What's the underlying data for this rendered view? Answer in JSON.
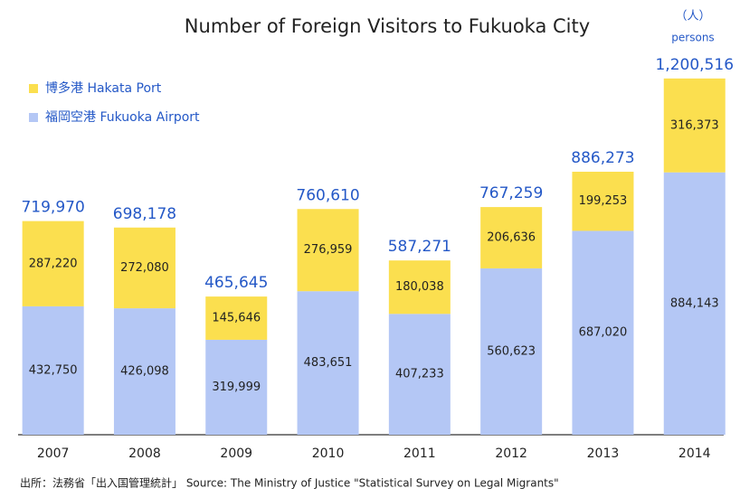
{
  "chart_data": {
    "type": "bar",
    "stacked": true,
    "title": "Number of Foreign Visitors to Fukuoka City",
    "unit_label": "（人）",
    "unit_sublabel": "persons",
    "source": "出所：法務省「出入国管理統計」 Source: The Ministry of Justice \"Statistical Survey on Legal Migrants\"",
    "categories": [
      "2007",
      "2008",
      "2009",
      "2010",
      "2011",
      "2012",
      "2013",
      "2014"
    ],
    "series": [
      {
        "name": "福岡空港 Fukuoka Airport",
        "color": "#b4c7f5",
        "values": [
          432750,
          426098,
          319999,
          483651,
          407233,
          560623,
          687020,
          884143
        ],
        "value_labels": [
          "432,750",
          "426,098",
          "319,999",
          "483,651",
          "407,233",
          "560,623",
          "687,020",
          "884,143"
        ]
      },
      {
        "name": "博多港 Hakata Port",
        "color": "#fbdf4f",
        "values": [
          287220,
          272080,
          145646,
          276959,
          180038,
          206636,
          199253,
          316373
        ],
        "value_labels": [
          "287,220",
          "272,080",
          "145,646",
          "276,959",
          "180,038",
          "206,636",
          "199,253",
          "316,373"
        ]
      }
    ],
    "totals": [
      719970,
      698178,
      465645,
      760610,
      587271,
      767259,
      886273,
      1200516
    ],
    "total_labels": [
      "719,970",
      "698,178",
      "465,645",
      "760,610",
      "587,271",
      "767,259",
      "886,273",
      "1,200,516"
    ],
    "total_color": "#2458c7",
    "ylim": [
      0,
      1200000
    ]
  }
}
